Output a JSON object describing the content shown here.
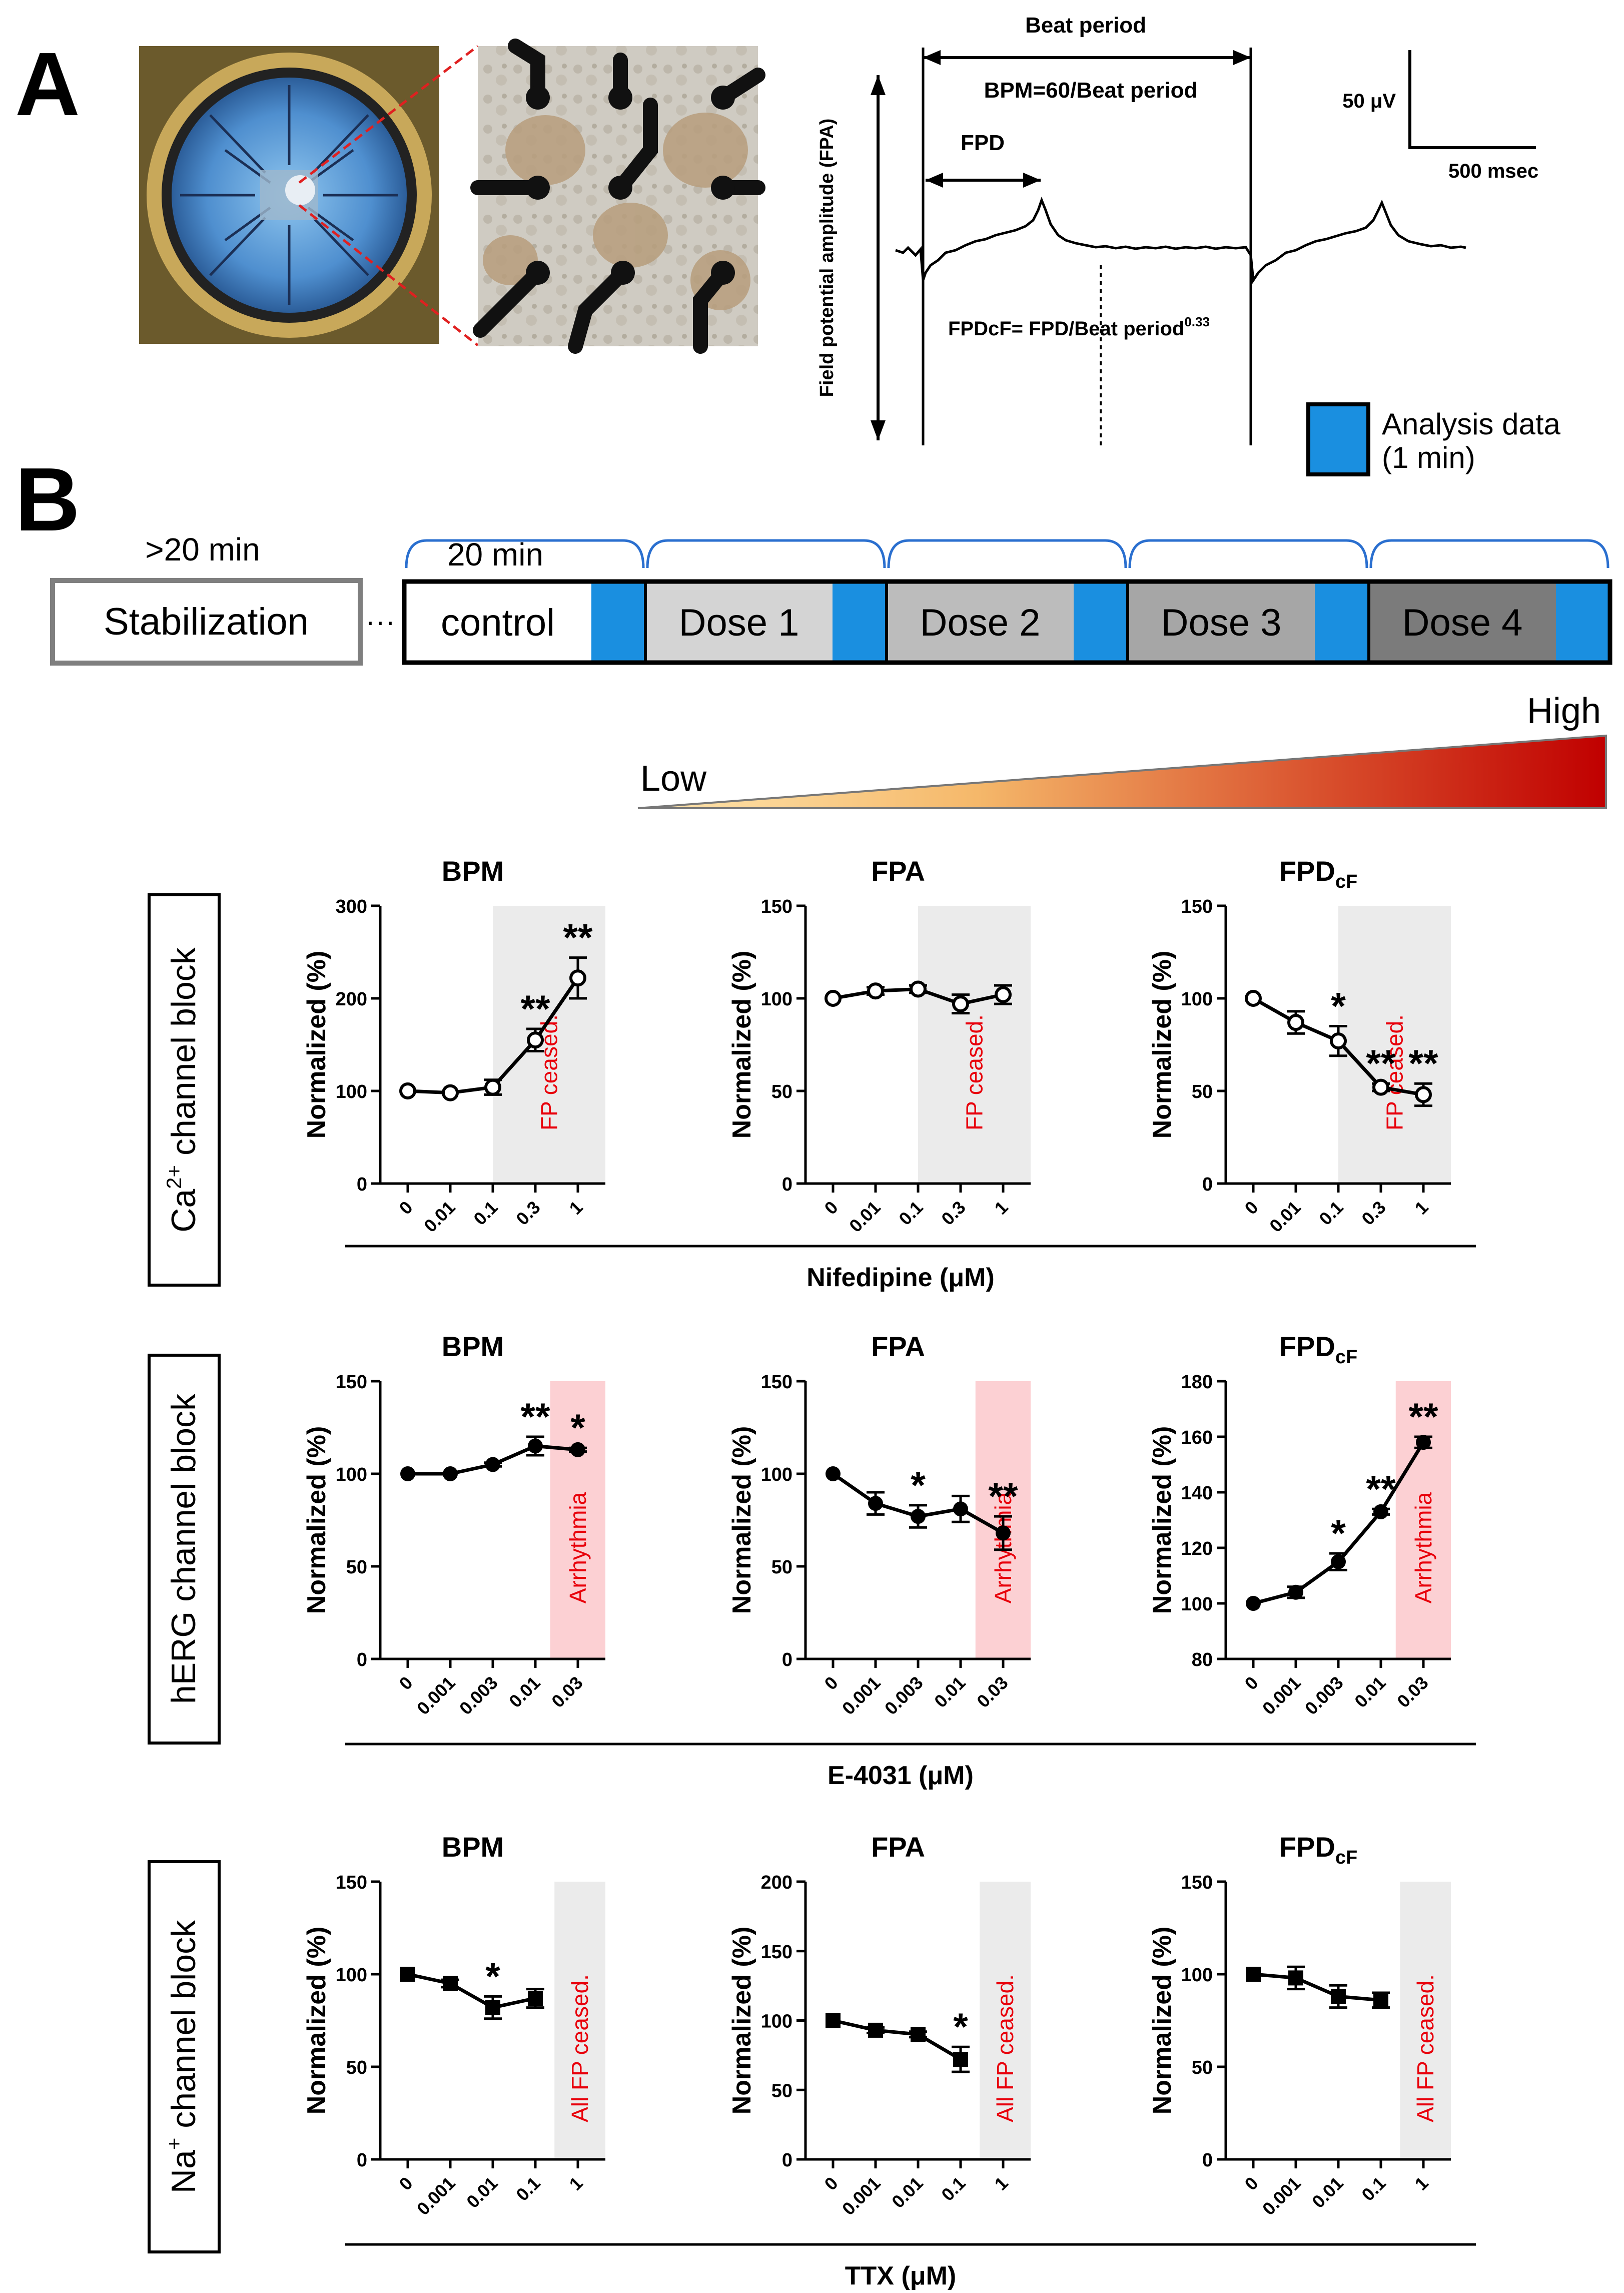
{
  "panel_a": {
    "label": "A",
    "trace": {
      "beat_period": "Beat period",
      "bpm_formula": "BPM=60/Beat period",
      "fpd": "FPD",
      "fpdcf_formula": "FPDcF= FPD/Beat period",
      "fpdcf_exponent": "0.33",
      "y_axis": "Field potential amplitude (FPA)",
      "scale_v": "50 μV",
      "scale_t": "500 msec"
    },
    "legend": {
      "line1": "Analysis data",
      "line2": "(1 min)",
      "color": "#1a8fe0"
    }
  },
  "panel_b": {
    "label": "B",
    "pre_time": ">20 min",
    "stabilization": "Stabilization",
    "ellipsis": "···",
    "segment_time": "20 min",
    "steps": [
      "control",
      "Dose 1",
      "Dose 2",
      "Dose 3",
      "Dose 4"
    ],
    "step_colors": [
      "#ffffff",
      "#d4d4d4",
      "#bcbcbc",
      "#a6a6a6",
      "#7b7b7b"
    ],
    "analysis_color": "#1a8fe0",
    "gradient_low": "Low",
    "gradient_high": "High"
  },
  "chart_data": [
    {
      "id": "ca-bpm",
      "type": "line",
      "row": 0,
      "col": 0,
      "title": "BPM",
      "ylabel": "Normalized (%)",
      "ylim": [
        0,
        300
      ],
      "yticks": [
        0,
        100,
        200,
        300
      ],
      "categories": [
        "0",
        "0.01",
        "0.1",
        "0.3",
        "1"
      ],
      "values": [
        100,
        98,
        104,
        155,
        222
      ],
      "errors": [
        0,
        0,
        8,
        12,
        22
      ],
      "marker": "open-circle",
      "significance": [
        "",
        "",
        "",
        "**",
        "**"
      ],
      "shade": {
        "from": "0.1",
        "label": "FP ceased.",
        "color": "#ebebeb"
      }
    },
    {
      "id": "ca-fpa",
      "type": "line",
      "row": 0,
      "col": 1,
      "title": "FPA",
      "ylabel": "Normalized (%)",
      "ylim": [
        0,
        150
      ],
      "yticks": [
        0,
        50,
        100,
        150
      ],
      "categories": [
        "0",
        "0.01",
        "0.1",
        "0.3",
        "1"
      ],
      "values": [
        100,
        104,
        105,
        97,
        102
      ],
      "errors": [
        0,
        2,
        2,
        5,
        5
      ],
      "marker": "open-circle",
      "significance": [
        "",
        "",
        "",
        "",
        ""
      ],
      "shade": {
        "from": "0.1",
        "label": "FP ceased.",
        "color": "#ebebeb"
      }
    },
    {
      "id": "ca-fpdcf",
      "type": "line",
      "row": 0,
      "col": 2,
      "title": "FPD",
      "title_sub": "cF",
      "ylabel": "Normalized (%)",
      "ylim": [
        0,
        150
      ],
      "yticks": [
        0,
        50,
        100,
        150
      ],
      "categories": [
        "0",
        "0.01",
        "0.1",
        "0.3",
        "1"
      ],
      "values": [
        100,
        87,
        77,
        52,
        48
      ],
      "errors": [
        0,
        6,
        8,
        2,
        6
      ],
      "marker": "open-circle",
      "significance": [
        "",
        "",
        "*",
        "**",
        "**"
      ],
      "shade": {
        "from": "0.1",
        "label": "FP ceased.",
        "color": "#ebebeb"
      }
    },
    {
      "id": "herg-bpm",
      "type": "line",
      "row": 1,
      "col": 0,
      "title": "BPM",
      "ylabel": "Normalized (%)",
      "ylim": [
        0,
        150
      ],
      "yticks": [
        0,
        50,
        100,
        150
      ],
      "categories": [
        "0",
        "0.001",
        "0.003",
        "0.01",
        "0.03"
      ],
      "values": [
        100,
        100,
        105,
        115,
        113
      ],
      "errors": [
        0,
        0,
        1,
        5,
        1
      ],
      "marker": "filled-circle",
      "significance": [
        "",
        "",
        "",
        "**",
        "*"
      ],
      "shade": {
        "from": "0.03",
        "label": "Arrhythmia",
        "color": "#fcd0d3"
      }
    },
    {
      "id": "herg-fpa",
      "type": "line",
      "row": 1,
      "col": 1,
      "title": "FPA",
      "ylabel": "Normalized (%)",
      "ylim": [
        0,
        150
      ],
      "yticks": [
        0,
        50,
        100,
        150
      ],
      "categories": [
        "0",
        "0.001",
        "0.003",
        "0.01",
        "0.03"
      ],
      "values": [
        100,
        84,
        77,
        81,
        68
      ],
      "errors": [
        0,
        6,
        6,
        7,
        9
      ],
      "marker": "filled-circle",
      "significance": [
        "",
        "",
        "*",
        "",
        "**"
      ],
      "shade": {
        "from": "0.03",
        "label": "Arrhythmia",
        "color": "#fcd0d3"
      }
    },
    {
      "id": "herg-fpdcf",
      "type": "line",
      "row": 1,
      "col": 2,
      "title": "FPD",
      "title_sub": "cF",
      "ylabel": "Normalized (%)",
      "ylim": [
        80,
        180
      ],
      "yticks": [
        80,
        100,
        120,
        140,
        160,
        180
      ],
      "categories": [
        "0",
        "0.001",
        "0.003",
        "0.01",
        "0.03"
      ],
      "values": [
        100,
        104,
        115,
        133,
        158
      ],
      "errors": [
        0,
        2,
        3,
        1,
        2
      ],
      "marker": "filled-circle",
      "significance": [
        "",
        "",
        "*",
        "**",
        "**"
      ],
      "shade": {
        "from": "0.03",
        "label": "Arrhythmia",
        "color": "#fcd0d3"
      }
    },
    {
      "id": "na-bpm",
      "type": "line",
      "row": 2,
      "col": 0,
      "title": "BPM",
      "ylabel": "Normalized (%)",
      "ylim": [
        0,
        150
      ],
      "yticks": [
        0,
        50,
        100,
        150
      ],
      "categories": [
        "0",
        "0.001",
        "0.01",
        "0.1",
        "1"
      ],
      "values": [
        100,
        95,
        82,
        87,
        null
      ],
      "errors": [
        0,
        2,
        6,
        5,
        0
      ],
      "marker": "filled-square",
      "significance": [
        "",
        "",
        "*",
        "",
        ""
      ],
      "shade": {
        "from": "1",
        "label": "All FP ceased.",
        "color": "#ebebeb"
      }
    },
    {
      "id": "na-fpa",
      "type": "line",
      "row": 2,
      "col": 1,
      "title": "FPA",
      "ylabel": "Normalized (%)",
      "ylim": [
        0,
        200
      ],
      "yticks": [
        0,
        50,
        100,
        150,
        200
      ],
      "categories": [
        "0",
        "0.001",
        "0.01",
        "0.1",
        "1"
      ],
      "values": [
        100,
        93,
        90,
        72,
        null
      ],
      "errors": [
        0,
        2,
        2,
        9,
        0
      ],
      "marker": "filled-square",
      "significance": [
        "",
        "",
        "",
        "*",
        ""
      ],
      "shade": {
        "from": "1",
        "label": "All FP ceased.",
        "color": "#ebebeb"
      }
    },
    {
      "id": "na-fpdcf",
      "type": "line",
      "row": 2,
      "col": 2,
      "title": "FPD",
      "title_sub": "cF",
      "ylabel": "Normalized (%)",
      "ylim": [
        0,
        150
      ],
      "yticks": [
        0,
        50,
        100,
        150
      ],
      "categories": [
        "0",
        "0.001",
        "0.01",
        "0.1",
        "1"
      ],
      "values": [
        100,
        98,
        88,
        86,
        null
      ],
      "errors": [
        0,
        6,
        6,
        4,
        0
      ],
      "marker": "filled-square",
      "significance": [
        "",
        "",
        "",
        "",
        ""
      ],
      "shade": {
        "from": "1",
        "label": "All FP ceased.",
        "color": "#ebebeb"
      }
    }
  ],
  "rows": [
    {
      "label_pre": "Ca",
      "label_sup": "2+",
      "label_post": " channel block",
      "xlabel": "Nifedipine (μM)"
    },
    {
      "label_pre": "hERG channel block",
      "label_sup": "",
      "label_post": "",
      "xlabel": "E-4031 (μM)"
    },
    {
      "label_pre": "Na",
      "label_sup": "+",
      "label_post": " channel block",
      "xlabel": "TTX (μM)"
    }
  ],
  "colors": {
    "shade_grey": "#ebebeb",
    "shade_pink": "#fcd0d3",
    "annotation_red": "#e8000b",
    "blue": "#1a8fe0",
    "gradient_start": "#ffe4a8",
    "gradient_end": "#c00000"
  }
}
